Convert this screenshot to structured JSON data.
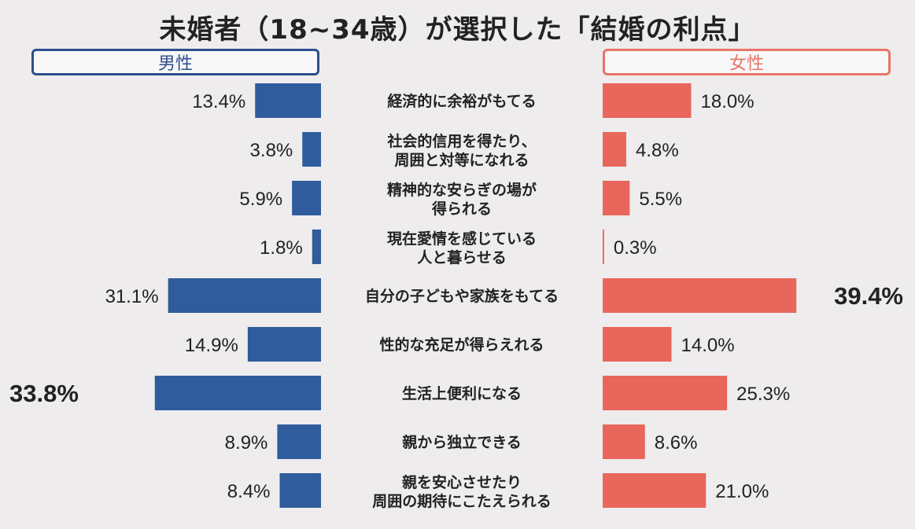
{
  "title": "未婚者（18~34歳）が選択した「結婚の利点」",
  "legend": {
    "male": "男性",
    "female": "女性"
  },
  "colors": {
    "male": "#2f5c9c",
    "female": "#e8665c",
    "male_frame": "#2e4e8e",
    "female_frame": "#e87468"
  },
  "chart_data": {
    "type": "bar",
    "title": "未婚者（18~34歳）が選択した「結婚の利点」",
    "categories": [
      [
        "経済的に余裕がもてる"
      ],
      [
        "社会的信用を得たり、",
        "周囲と対等になれる"
      ],
      [
        "精神的な安らぎの場が",
        "得られる"
      ],
      [
        "現在愛情を感じている",
        "人と暮らせる"
      ],
      [
        "自分の子どもや家族をもてる"
      ],
      [
        "性的な充足が得らえれる"
      ],
      [
        "生活上便利になる"
      ],
      [
        "親から独立できる"
      ],
      [
        "親を安心させたり",
        "周囲の期待にこたえられる"
      ]
    ],
    "series": [
      {
        "name": "男性",
        "values": [
          13.4,
          3.8,
          5.9,
          1.8,
          31.1,
          14.9,
          33.8,
          8.9,
          8.4
        ],
        "labels": [
          "13.4%",
          "3.8%",
          "5.9%",
          "1.8%",
          "31.1%",
          "14.9%",
          "33.8%",
          "8.9%",
          "8.4%"
        ]
      },
      {
        "name": "女性",
        "values": [
          18.0,
          4.8,
          5.5,
          0.3,
          39.4,
          14.0,
          25.3,
          8.6,
          21.0
        ],
        "labels": [
          "18.0%",
          "4.8%",
          "5.5%",
          "0.3%",
          "39.4%",
          "14.0%",
          "25.3%",
          "8.6%",
          "21.0%"
        ]
      }
    ],
    "xlim": [
      0,
      40
    ],
    "highlight": {
      "male_max_index": 6,
      "female_max_index": 4
    }
  }
}
